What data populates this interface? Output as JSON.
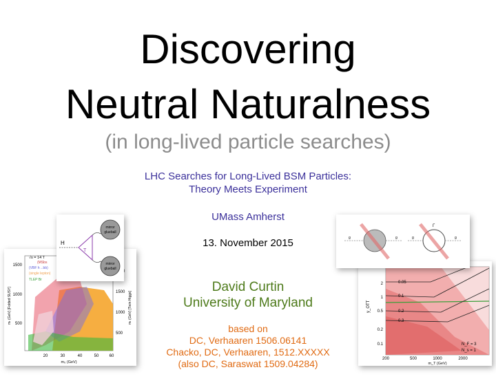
{
  "slide": {
    "title_line1": "Discovering",
    "title_line2": "Neutral Naturalness",
    "subtitle": "(in long-lived particle searches)",
    "conference_line1": "LHC Searches for Long-Lived BSM Particles:",
    "conference_line2": "Theory Meets Experiment",
    "venue": "UMass Amherst",
    "date": "13. November 2015",
    "author": "David Curtin",
    "affiliation": "University of Maryland",
    "based_on": "based on",
    "ref1": "DC, Verhaaren 1506.06141",
    "ref2": "Chacko, DC, Verhaaren, 1512.XXXXX",
    "ref3": "(also DC, Saraswat 1509.04284)"
  },
  "feynman": {
    "h_label": "H",
    "t_label": "T",
    "glueball_top": [
      "mirror",
      "glueball"
    ],
    "glueball_bottom": [
      "mirror",
      "glueball"
    ]
  },
  "left_plot": {
    "sqrt_s": "√s = 14 T",
    "legend": [
      "(MSbs",
      "(VBF h→bb)",
      "(single lepton)",
      "TLEP Br"
    ],
    "legend_colors": [
      "#c83c3c",
      "#5a5ad6",
      "#f0a050",
      "#3aa03a"
    ],
    "y_ticks_left": [
      "1500",
      "1000",
      "500"
    ],
    "y_ticks_right": [
      "2000",
      "1500",
      "1000",
      "500"
    ],
    "x_ticks": [
      "20",
      "30",
      "40",
      "50",
      "60"
    ],
    "y_label_left": "mₜ (GeV)   [Folded SUSY]",
    "y_label_right": "mₜ (GeV)   [Twin Higgs]",
    "x_label": "m₀ (GeV)"
  },
  "right_diagrams": {
    "labels": [
      "g",
      "g",
      "g",
      "g",
      "Γ"
    ]
  },
  "right_plot": {
    "y_ticks": [
      "2",
      "1",
      "0.5",
      "0.2",
      "0.1"
    ],
    "x_ticks": [
      "200",
      "500",
      "1000",
      "2000"
    ],
    "contours": [
      "0.05",
      "0.1",
      "0.2",
      "0.3"
    ],
    "y_label": "y_OTT",
    "x_label": "m_T (GeV)",
    "annot1": "N_F = 3",
    "annot2": "N_s = 1"
  }
}
